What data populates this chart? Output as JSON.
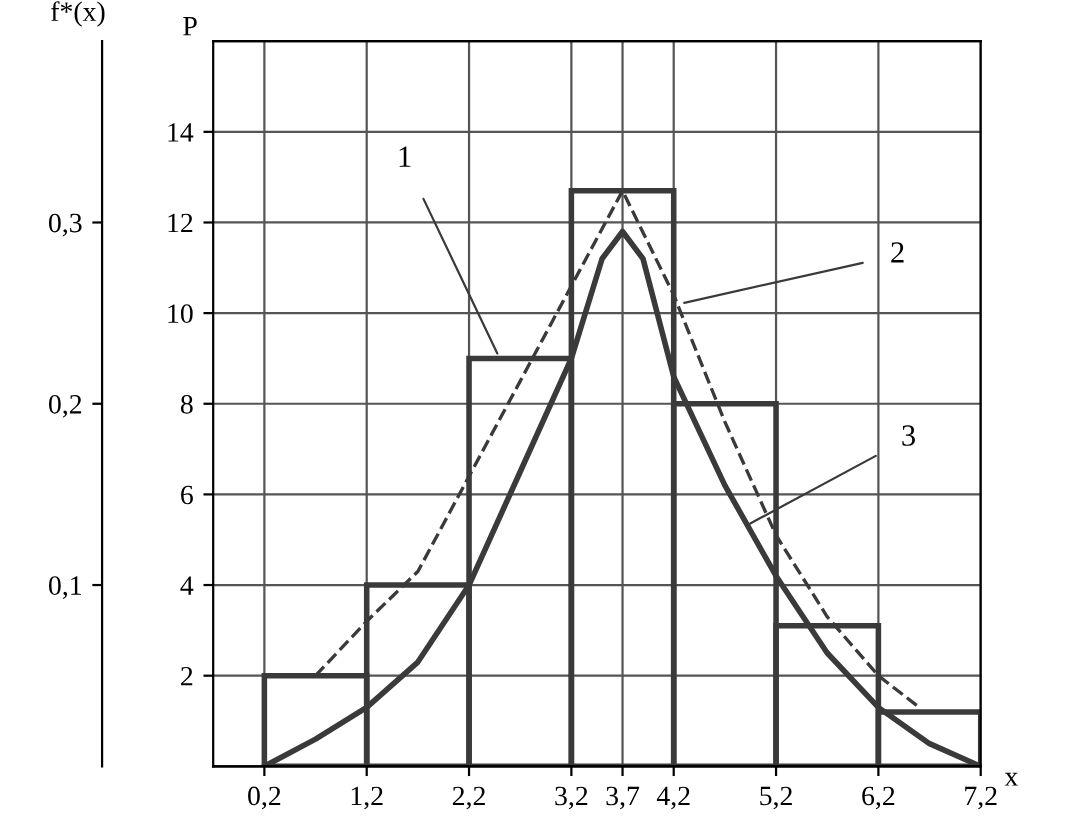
{
  "chart_data": {
    "type": "histogram",
    "color": "#3a3a3a",
    "xlabel": "x",
    "ylabel": "P",
    "y2label": "f*(x)",
    "bins": [
      0.2,
      1.2,
      2.2,
      3.2,
      4.2,
      5.2,
      6.2,
      7.2
    ],
    "values": [
      2,
      4,
      9,
      12.7,
      8,
      3.1,
      1.2
    ],
    "series": [
      {
        "type": "line",
        "line_style": "dashed",
        "color": "#3a3a3a",
        "x": [
          0.7,
          1.2,
          1.7,
          2.2,
          2.7,
          3.2,
          3.7,
          4.2,
          4.7,
          5.2,
          5.7,
          6.2,
          6.6
        ],
        "values": [
          2.0,
          3.2,
          4.3,
          6.4,
          8.5,
          10.6,
          12.7,
          10.4,
          7.6,
          5.1,
          3.3,
          2.0,
          1.3
        ]
      },
      {
        "type": "line",
        "line_style": "solid",
        "color": "#3a3a3a",
        "x": [
          0.2,
          0.7,
          1.2,
          1.7,
          2.2,
          2.7,
          3.2,
          3.5,
          3.7,
          3.9,
          4.2,
          4.7,
          5.2,
          5.7,
          6.2,
          6.7,
          7.2
        ],
        "values": [
          0,
          0.6,
          1.3,
          2.3,
          4.0,
          6.5,
          9.0,
          11.2,
          11.8,
          11.2,
          8.6,
          6.2,
          4.2,
          2.5,
          1.3,
          0.5,
          0
        ]
      }
    ],
    "xlim": [
      -0.3,
      7.2
    ],
    "xticks": [
      {
        "value": 0.2,
        "label": "0,2"
      },
      {
        "value": 1.2,
        "label": "1,2"
      },
      {
        "value": 2.2,
        "label": "2,2"
      },
      {
        "value": 3.2,
        "label": "3,2"
      },
      {
        "value": 3.7,
        "label": "3,7"
      },
      {
        "value": 4.2,
        "label": "4,2"
      },
      {
        "value": 5.2,
        "label": "5,2"
      },
      {
        "value": 6.2,
        "label": "6,2"
      },
      {
        "value": 7.2,
        "label": "7,2"
      }
    ],
    "ylim": [
      0,
      16
    ],
    "yticks": [
      2,
      4,
      6,
      8,
      10,
      12,
      14
    ],
    "y2lim": [
      0,
      0.4
    ],
    "y2ticks": [
      {
        "value": 0.1,
        "label": "0,1"
      },
      {
        "value": 0.2,
        "label": "0,2"
      },
      {
        "value": 0.3,
        "label": "0,3"
      }
    ],
    "grid": true,
    "annotations": [
      {
        "text": "1",
        "x": 2.5,
        "y": 9
      },
      {
        "text": "2",
        "x": 4.25,
        "y": 10.2
      },
      {
        "text": "3",
        "x": 4.9,
        "y": 5.3
      }
    ]
  }
}
